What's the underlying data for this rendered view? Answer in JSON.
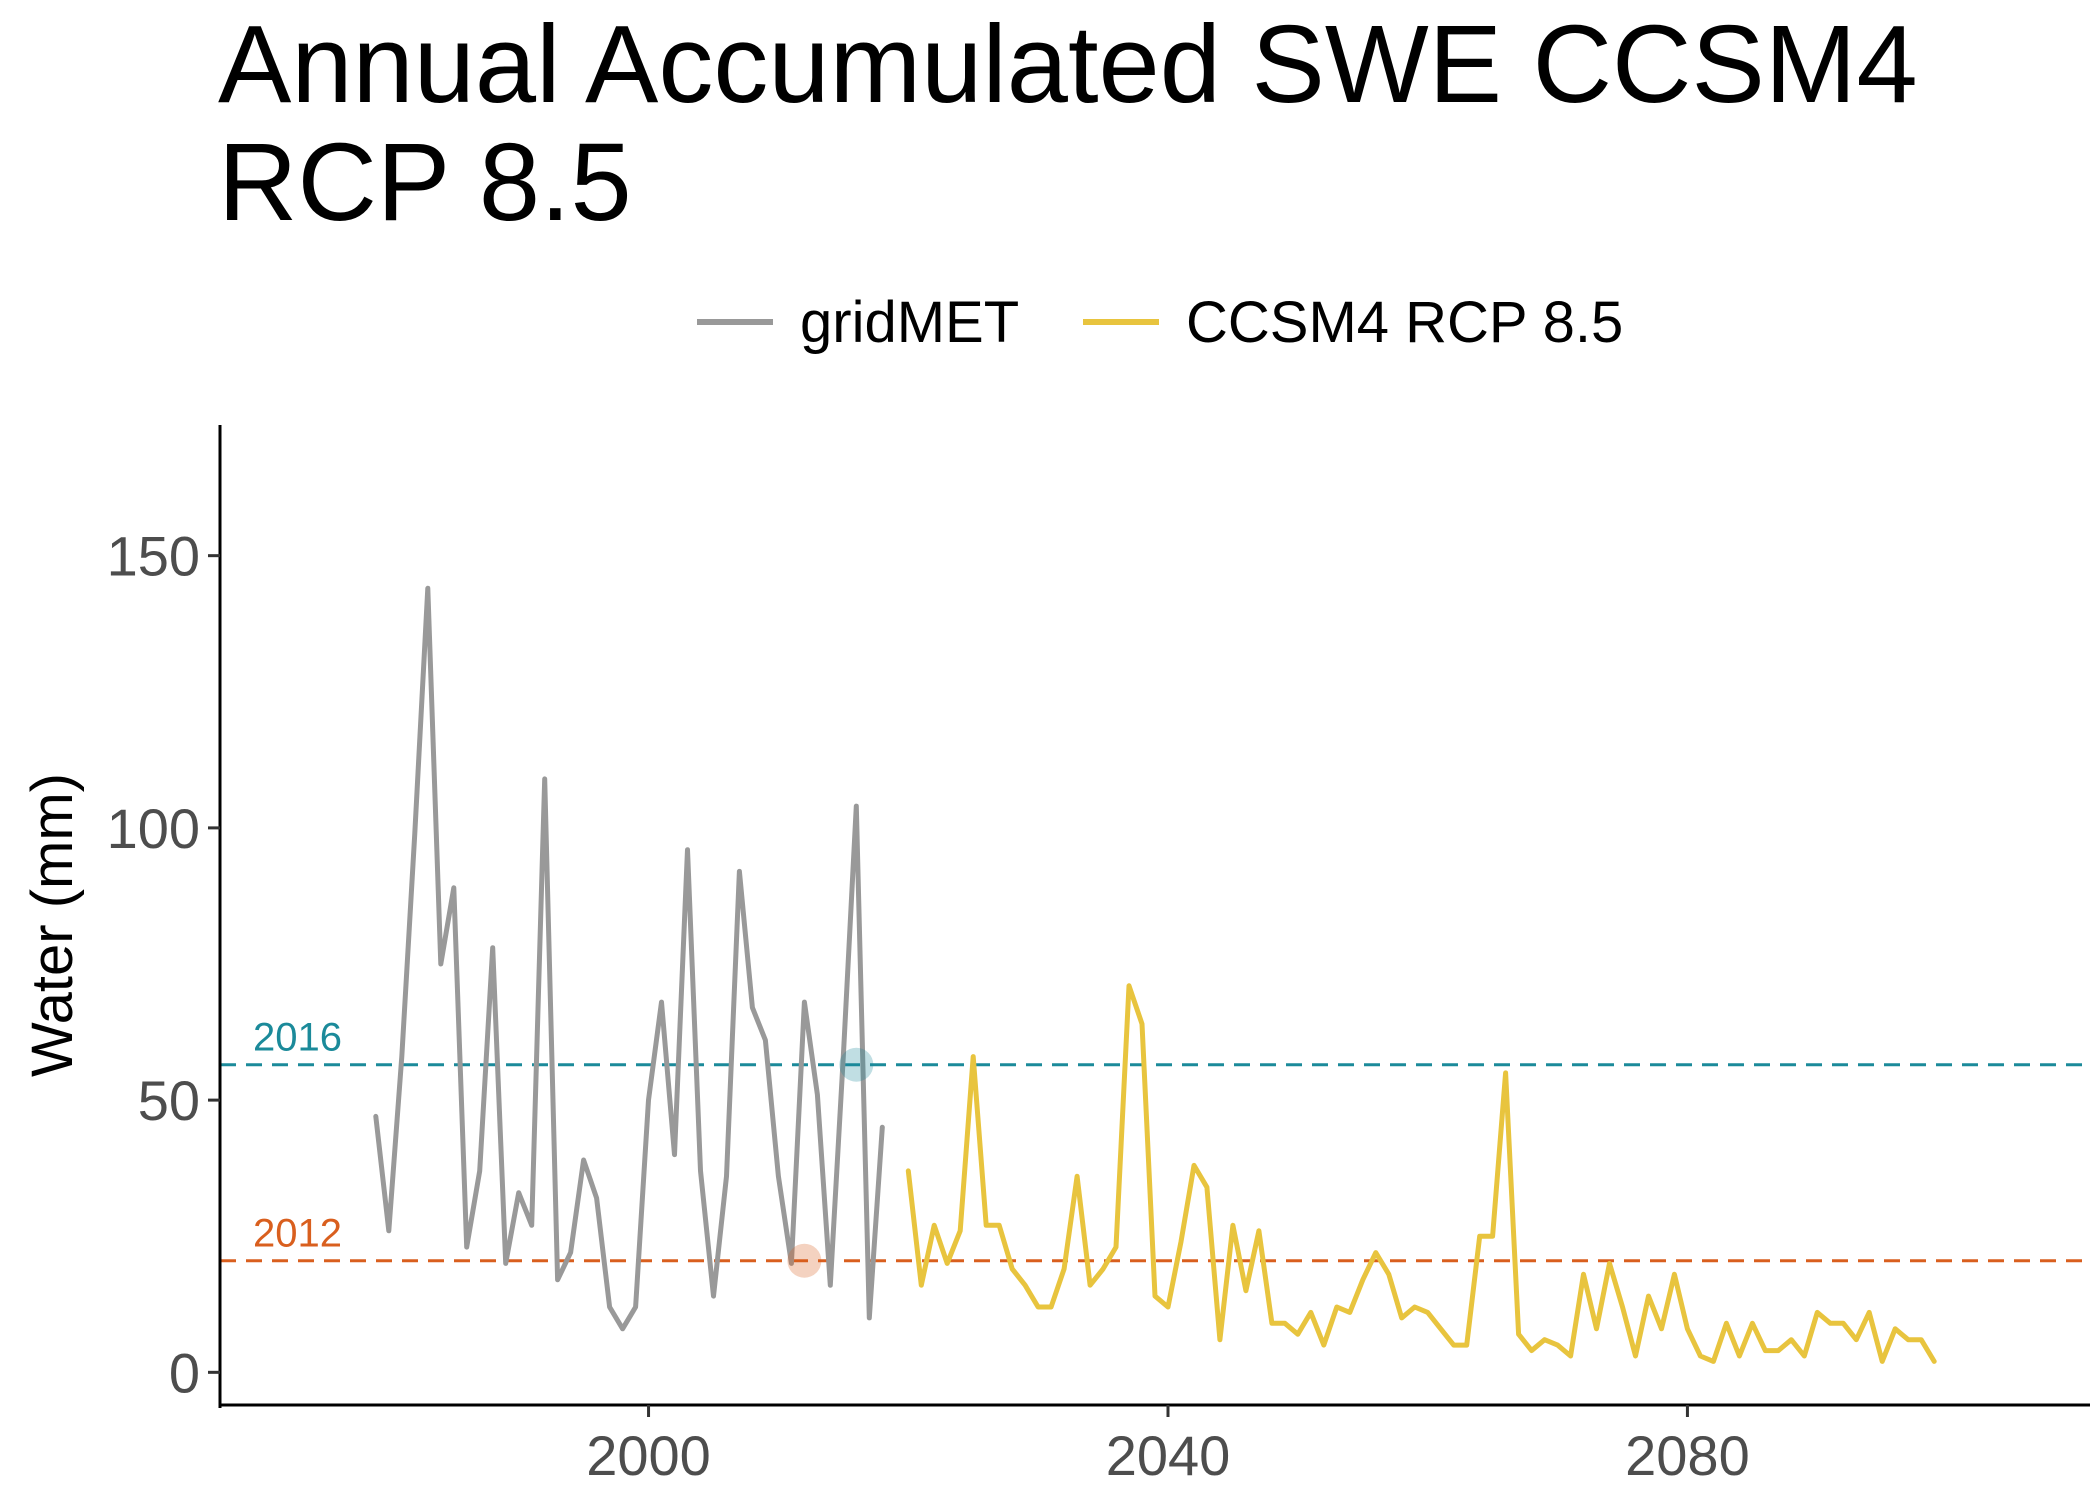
{
  "chart_data": {
    "type": "line",
    "title": "Annual Accumulated SWE CCSM4 RCP 8.5",
    "xlabel": "",
    "ylabel": "Water (mm)",
    "xlim": [
      1967,
      2111
    ],
    "ylim": [
      -6,
      174
    ],
    "x_ticks": [
      2000,
      2040,
      2080
    ],
    "y_ticks": [
      0,
      50,
      100,
      150
    ],
    "grid": false,
    "legend_position": "top",
    "series": [
      {
        "name": "gridMET",
        "color": "#999999",
        "x": [
          1979,
          1980,
          1981,
          1982,
          1983,
          1984,
          1985,
          1986,
          1987,
          1988,
          1989,
          1990,
          1991,
          1992,
          1993,
          1994,
          1995,
          1996,
          1997,
          1998,
          1999,
          2000,
          2001,
          2002,
          2003,
          2004,
          2005,
          2006,
          2007,
          2008,
          2009,
          2010,
          2011,
          2012,
          2013,
          2014,
          2015,
          2016,
          2017,
          2018,
          2019
        ],
        "y": [
          47,
          26,
          58,
          99,
          144,
          75,
          89,
          23,
          37,
          78,
          20,
          33,
          27,
          109,
          17,
          22,
          39,
          32,
          12,
          8,
          12,
          50,
          68,
          40,
          96,
          37,
          14,
          36,
          92,
          67,
          61,
          36,
          20,
          68,
          51,
          16,
          58,
          104,
          10,
          45,
          null
        ]
      },
      {
        "name": "CCSM4 RCP 8.5",
        "color": "#E8C43E",
        "x": [
          2020,
          2021,
          2022,
          2023,
          2024,
          2025,
          2026,
          2027,
          2028,
          2029,
          2030,
          2031,
          2032,
          2033,
          2034,
          2035,
          2036,
          2037,
          2038,
          2039,
          2040,
          2041,
          2042,
          2043,
          2044,
          2045,
          2046,
          2047,
          2048,
          2049,
          2050,
          2051,
          2052,
          2053,
          2054,
          2055,
          2056,
          2057,
          2058,
          2059,
          2060,
          2061,
          2062,
          2063,
          2064,
          2065,
          2066,
          2067,
          2068,
          2069,
          2070,
          2071,
          2072,
          2073,
          2074,
          2075,
          2076,
          2077,
          2078,
          2079,
          2080,
          2081,
          2082,
          2083,
          2084,
          2085,
          2086,
          2087,
          2088,
          2089,
          2090,
          2091,
          2092,
          2093,
          2094,
          2095,
          2096,
          2097,
          2098,
          2099,
          2100
        ],
        "y": [
          37,
          16,
          27,
          20,
          26,
          58,
          27,
          27,
          19,
          16,
          12,
          12,
          19,
          36,
          16,
          19,
          23,
          71,
          64,
          14,
          12,
          24,
          38,
          34,
          6,
          27,
          15,
          26,
          9,
          9,
          7,
          11,
          5,
          12,
          11,
          17,
          22,
          18,
          10,
          12,
          11,
          8,
          5,
          5,
          25,
          25,
          55,
          7,
          4,
          6,
          5,
          3,
          18,
          8,
          20,
          12,
          3,
          14,
          8,
          18,
          8,
          3,
          2,
          9,
          3,
          9,
          4,
          4,
          6,
          3,
          11,
          9,
          9,
          6,
          11,
          2,
          8,
          6,
          6,
          2,
          null
        ]
      }
    ],
    "reference_lines": [
      {
        "label": "2016",
        "y": 56.5,
        "color": "#1B8A9A",
        "style": "dashed",
        "highlight_x": 2016
      },
      {
        "label": "2012",
        "y": 20.5,
        "color": "#D95F1E",
        "style": "dashed",
        "highlight_x": 2012
      }
    ]
  }
}
